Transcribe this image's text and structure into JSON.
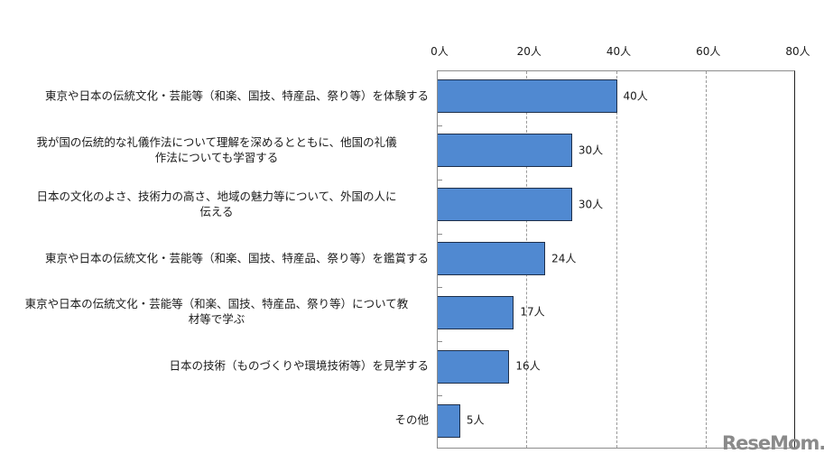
{
  "chart_data": {
    "type": "bar",
    "orientation": "horizontal",
    "title": "",
    "xlabel": "",
    "ylabel": "",
    "unit": "人",
    "xlim": [
      0,
      80
    ],
    "x_ticks": [
      "0人",
      "20人",
      "40人",
      "60人",
      "80人"
    ],
    "x_tick_values": [
      0,
      20,
      40,
      60,
      80
    ],
    "x_axis_position": "top",
    "grid": "vertical dashed",
    "legend": null,
    "categories": [
      "東京や日本の伝統文化・芸能等（和楽、国技、特産品、祭り等）を体験する",
      "我が国の伝統的な礼儀作法について理解を深めるとともに、他国の礼儀作法についても学習する",
      "日本の文化のよさ、技術力の高さ、地域の魅力等について、外国の人に伝える",
      "東京や日本の伝統文化・芸能等（和楽、国技、特産品、祭り等）を鑑賞する",
      "東京や日本の伝統文化・芸能等（和楽、国技、特産品、祭り等）について教材等で学ぶ",
      "日本の技術（ものづくりや環境技術等）を見学する",
      "その他"
    ],
    "values": [
      40,
      30,
      30,
      24,
      17,
      16,
      5
    ],
    "value_labels": [
      "40人",
      "30人",
      "30人",
      "24人",
      "17人",
      "16人",
      "5人"
    ],
    "bar_color": "#5089d1",
    "bar_edge_color": "#1e2f4a"
  },
  "labels": {
    "lines": [
      [
        "東京や日本の伝統文化・芸能等（和楽、国技、特産品、祭り等）を体験する"
      ],
      [
        "我が国の伝統的な礼儀作法について理解を深めるとともに、他国の礼儀",
        "作法についても学習する"
      ],
      [
        "日本の文化のよさ、技術力の高さ、地域の魅力等について、外国の人に",
        "伝える"
      ],
      [
        "東京や日本の伝統文化・芸能等（和楽、国技、特産品、祭り等）を鑑賞する"
      ],
      [
        "東京や日本の伝統文化・芸能等（和楽、国技、特産品、祭り等）について教",
        "材等で学ぶ"
      ],
      [
        "日本の技術（ものづくりや環境技術等）を見学する"
      ],
      [
        "その他"
      ]
    ]
  },
  "watermark": {
    "text": "ReseMom."
  }
}
